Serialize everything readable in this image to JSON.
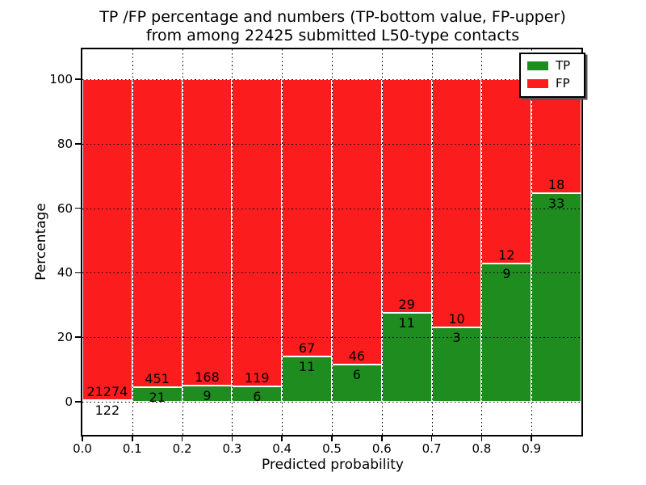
{
  "chart_data": {
    "type": "bar",
    "stacked": true,
    "title_line1": "TP /FP percentage and numbers (TP-bottom value, FP-upper)",
    "title_line2": "from among 22425 submitted L50-type contacts",
    "xlabel": "Predicted probability",
    "ylabel": "Percentage",
    "x_tick_labels": [
      "0.0",
      "0.1",
      "0.2",
      "0.3",
      "0.4",
      "0.5",
      "0.6",
      "0.7",
      "0.8",
      "0.9"
    ],
    "y_tick_values": [
      0,
      20,
      40,
      60,
      80,
      100
    ],
    "xlim": [
      0.0,
      1.0
    ],
    "ylim": [
      -11,
      110
    ],
    "grid": "black dotted, on top of bars",
    "colors": {
      "tp": "#1f8c1f",
      "fp": "#fb1d1d"
    },
    "legend": {
      "position": "upper right",
      "entries": [
        {
          "label": "TP",
          "color": "#1f8c1f"
        },
        {
          "label": "FP",
          "color": "#fb1d1d"
        }
      ]
    },
    "bins": [
      {
        "x_start": 0.0,
        "x_end": 0.1,
        "tp": 122,
        "fp": 21274
      },
      {
        "x_start": 0.1,
        "x_end": 0.2,
        "tp": 21,
        "fp": 451
      },
      {
        "x_start": 0.2,
        "x_end": 0.3,
        "tp": 9,
        "fp": 168
      },
      {
        "x_start": 0.3,
        "x_end": 0.4,
        "tp": 6,
        "fp": 119
      },
      {
        "x_start": 0.4,
        "x_end": 0.5,
        "tp": 11,
        "fp": 67
      },
      {
        "x_start": 0.5,
        "x_end": 0.6,
        "tp": 6,
        "fp": 46
      },
      {
        "x_start": 0.6,
        "x_end": 0.7,
        "tp": 11,
        "fp": 29
      },
      {
        "x_start": 0.7,
        "x_end": 0.8,
        "tp": 3,
        "fp": 10
      },
      {
        "x_start": 0.8,
        "x_end": 0.9,
        "tp": 9,
        "fp": 12
      },
      {
        "x_start": 0.9,
        "x_end": 1.0,
        "tp": 33,
        "fp": 18
      }
    ]
  }
}
